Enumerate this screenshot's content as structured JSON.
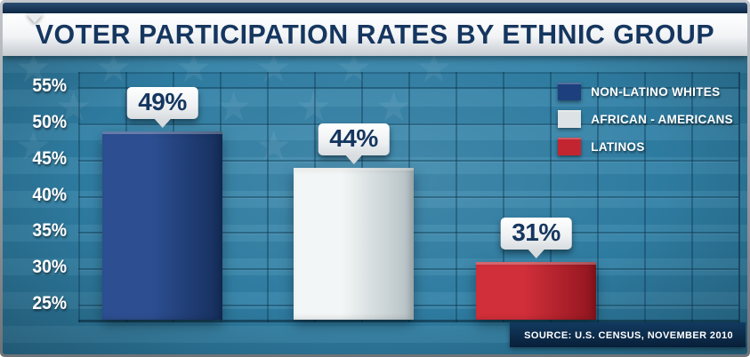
{
  "chart_data": {
    "type": "bar",
    "title": "VOTER PARTICIPATION RATES BY ETHNIC GROUP",
    "categories": [
      "Non-Latino Whites",
      "African - Americans",
      "Latinos"
    ],
    "values": [
      49,
      44,
      31
    ],
    "value_labels": [
      "49%",
      "44%",
      "31%"
    ],
    "y_ticks": [
      "55%",
      "50%",
      "45%",
      "40%",
      "35%",
      "30%",
      "25%"
    ],
    "ylim": [
      23,
      57
    ],
    "grid": true,
    "legend_position": "top-right",
    "legend": [
      {
        "label": "NON-LATINO WHITES",
        "color": "#1e3f7d"
      },
      {
        "label": "AFRICAN - AMERICANS",
        "color": "#dde3e5"
      },
      {
        "label": "LATINOS",
        "color": "#c32530"
      }
    ],
    "bar_gradients": [
      {
        "from": "#2d4f92",
        "to": "#152e5c"
      },
      {
        "from": "#f3f6f6",
        "to": "#b3bfc3"
      },
      {
        "from": "#d12f3a",
        "to": "#90151e"
      }
    ],
    "source": "SOURCE: U.S. CENSUS, NOVEMBER 2010",
    "background_color": "#2f7fa5",
    "title_text_color": "#15365f"
  }
}
